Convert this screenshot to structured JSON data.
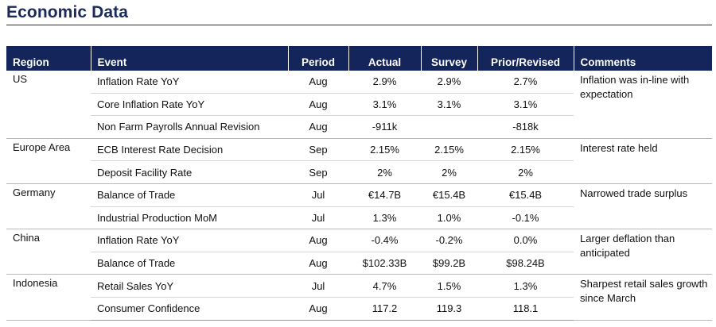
{
  "title": "Economic Data",
  "headers": {
    "region": "Region",
    "event": "Event",
    "period": "Period",
    "actual": "Actual",
    "survey": "Survey",
    "prior": "Prior/Revised",
    "comments": "Comments"
  },
  "groups": [
    {
      "region": "US",
      "comment": "Inflation was in-line with expectation",
      "rows": [
        {
          "event": "Inflation Rate YoY",
          "period": "Aug",
          "actual": "2.9%",
          "survey": "2.9%",
          "prior": "2.7%"
        },
        {
          "event": "Core Inflation Rate YoY",
          "period": "Aug",
          "actual": "3.1%",
          "survey": "3.1%",
          "prior": "3.1%"
        },
        {
          "event": "Non Farm Payrolls Annual Revision",
          "period": "Aug",
          "actual": "-911k",
          "survey": "",
          "prior": "-818k"
        }
      ]
    },
    {
      "region": "Europe Area",
      "comment": "Interest rate held",
      "rows": [
        {
          "event": "ECB Interest Rate Decision",
          "period": "Sep",
          "actual": "2.15%",
          "survey": "2.15%",
          "prior": "2.15%"
        },
        {
          "event": "Deposit Facility Rate",
          "period": "Sep",
          "actual": "2%",
          "survey": "2%",
          "prior": "2%"
        }
      ]
    },
    {
      "region": "Germany",
      "comment": "Narrowed trade surplus",
      "rows": [
        {
          "event": "Balance of Trade",
          "period": "Jul",
          "actual": "€14.7B",
          "survey": "€15.4B",
          "prior": "€15.4B"
        },
        {
          "event": "Industrial Production MoM",
          "period": "Jul",
          "actual": "1.3%",
          "survey": "1.0%",
          "prior": "-0.1%"
        }
      ]
    },
    {
      "region": "China",
      "comment": "Larger deflation than anticipated",
      "rows": [
        {
          "event": "Inflation Rate YoY",
          "period": "Aug",
          "actual": "-0.4%",
          "survey": "-0.2%",
          "prior": "0.0%"
        },
        {
          "event": "Balance of Trade",
          "period": "Aug",
          "actual": "$102.33B",
          "survey": "$99.2B",
          "prior": "$98.24B"
        }
      ]
    },
    {
      "region": "Indonesia",
      "comment": "Sharpest retail sales growth since March",
      "rows": [
        {
          "event": "Retail Sales YoY",
          "period": "Jul",
          "actual": "4.7%",
          "survey": "1.5%",
          "prior": "1.3%"
        },
        {
          "event": "Consumer Confidence",
          "period": "Aug",
          "actual": "117.2",
          "survey": "119.3",
          "prior": "118.1"
        }
      ]
    }
  ]
}
